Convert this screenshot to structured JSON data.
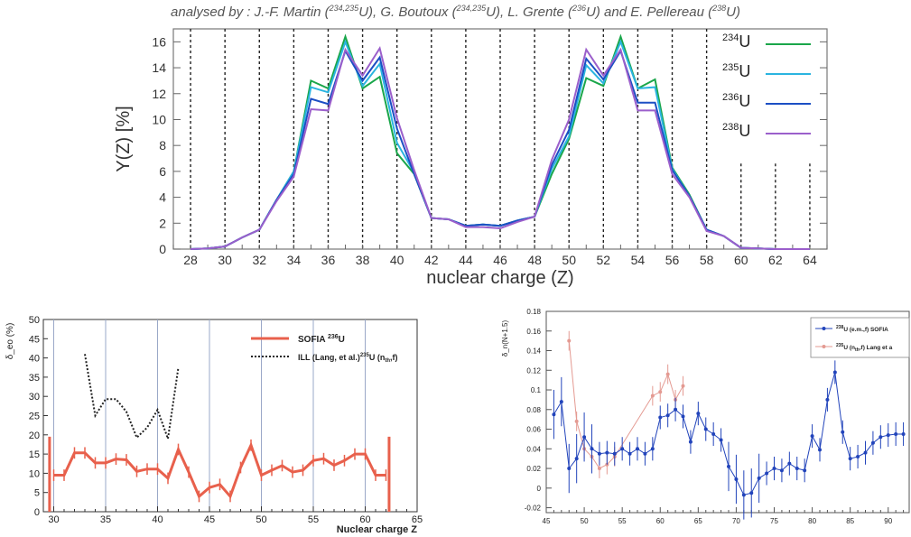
{
  "credit": {
    "prefix": "analysed by : J.-F. Martin (",
    "a": "234,235",
    "b": "U), G. Boutoux (",
    "c": "234,235",
    "d": "U), L. Grente (",
    "e": "236",
    "f": "U) and E. Pellereau (",
    "g": "238",
    "h": "U)"
  },
  "chart_data": [
    {
      "type": "line",
      "xlabel": "nuclear charge (Z)",
      "ylabel": "Y(Z) [%]",
      "xlim": [
        27,
        65
      ],
      "ylim": [
        0,
        17
      ],
      "xticks": [
        "28",
        "30",
        "32",
        "34",
        "36",
        "38",
        "40",
        "42",
        "44",
        "46",
        "48",
        "50",
        "52",
        "54",
        "56",
        "58",
        "60",
        "62",
        "64"
      ],
      "yticks": [
        "0",
        "2",
        "4",
        "6",
        "8",
        "10",
        "12",
        "14",
        "16"
      ],
      "grid": "vertical dotted lines at even Z",
      "legend": "top-right",
      "x": [
        28,
        29,
        30,
        31,
        32,
        33,
        34,
        35,
        36,
        37,
        38,
        39,
        40,
        41,
        42,
        43,
        44,
        45,
        46,
        47,
        48,
        49,
        50,
        51,
        52,
        53,
        54,
        55,
        56,
        57,
        58,
        59,
        60,
        61,
        62,
        63,
        64
      ],
      "series": [
        {
          "name": "234U",
          "label_mass": "234",
          "label_el": "U",
          "color": "#1aa64a",
          "values": [
            0,
            0.05,
            0.2,
            0.9,
            1.5,
            3.8,
            6,
            13,
            12.4,
            16.4,
            12.4,
            13.3,
            7.4,
            5.8,
            2.4,
            2.3,
            1.8,
            1.9,
            1.8,
            2.2,
            2.5,
            5.8,
            8.5,
            13.2,
            12.6,
            16.4,
            12.4,
            13.1,
            6.3,
            4.2,
            1.5,
            1,
            0.1,
            0.05,
            0,
            0,
            0
          ]
        },
        {
          "name": "235U",
          "label_mass": "235",
          "label_el": "U",
          "color": "#2ab4e0",
          "values": [
            0,
            0.05,
            0.2,
            0.9,
            1.5,
            3.8,
            6,
            12.5,
            12.1,
            16,
            12.6,
            14.3,
            8.2,
            5.9,
            2.4,
            2.3,
            1.8,
            1.9,
            1.8,
            2.2,
            2.5,
            6.2,
            8.7,
            14.2,
            12.8,
            16,
            12.4,
            12.5,
            6.2,
            4.1,
            1.5,
            1,
            0.1,
            0.05,
            0,
            0,
            0
          ]
        },
        {
          "name": "236U",
          "label_mass": "236",
          "label_el": "U",
          "color": "#1c4fc4",
          "values": [
            0,
            0.05,
            0.2,
            0.9,
            1.5,
            3.8,
            5.8,
            11.6,
            11.2,
            15.3,
            13,
            14.8,
            9.3,
            5.8,
            2.4,
            2.3,
            1.8,
            1.9,
            1.8,
            2.2,
            2.5,
            6.5,
            9.2,
            14.7,
            13.1,
            15.3,
            11.3,
            11.3,
            6.1,
            4.1,
            1.5,
            1,
            0.1,
            0.05,
            0,
            0,
            0
          ]
        },
        {
          "name": "238U",
          "label_mass": "238",
          "label_el": "U",
          "color": "#9b5fcb",
          "values": [
            0,
            0.05,
            0.2,
            0.9,
            1.5,
            3.7,
            5.6,
            10.8,
            10.7,
            15.4,
            13.4,
            15.5,
            10.1,
            6.1,
            2.4,
            2.3,
            1.7,
            1.7,
            1.6,
            2.1,
            2.5,
            6.9,
            10,
            15.4,
            13.4,
            15.4,
            10.7,
            10.7,
            5.8,
            4,
            1.4,
            1,
            0.1,
            0.05,
            0,
            0,
            0
          ]
        }
      ]
    },
    {
      "type": "line",
      "xlabel": "Nuclear charge Z",
      "ylabel": "δ_eo (%)",
      "xlim": [
        29,
        65
      ],
      "ylim": [
        0,
        50
      ],
      "xticks": [
        "30",
        "35",
        "40",
        "45",
        "50",
        "55",
        "60",
        "65"
      ],
      "yticks": [
        "0",
        "5",
        "10",
        "15",
        "20",
        "25",
        "30",
        "35",
        "40",
        "45",
        "50"
      ],
      "legend": "top-right",
      "series": [
        {
          "name": "SOFIA 236U",
          "label_main": "SOFIA ",
          "label_sup": "236",
          "label_tail": "U",
          "color": "#e8604c",
          "x": [
            30,
            31,
            32,
            33,
            34,
            35,
            36,
            37,
            38,
            39,
            40,
            41,
            42,
            43,
            44,
            45,
            46,
            47,
            48,
            49,
            50,
            51,
            52,
            53,
            54,
            55,
            56,
            57,
            58,
            59,
            60,
            61,
            62
          ],
          "values": [
            9.5,
            9.5,
            15.3,
            15.3,
            12.7,
            12.7,
            13.7,
            13.5,
            10.5,
            11.1,
            11.1,
            8.7,
            16.2,
            10.3,
            4,
            6.3,
            7.1,
            4,
            11.5,
            17.3,
            9.5,
            10.8,
            12,
            10.3,
            10.8,
            13.3,
            13.8,
            12.1,
            13.3,
            15,
            15,
            9.5,
            9.5
          ]
        },
        {
          "name": "ILL (Lang, et al.) 235U (n_th,f)",
          "label_main": "ILL (Lang, et al.)",
          "label_sup": "235",
          "label_tail": "U (n",
          "label_sub": "th",
          "label_end": ",f)",
          "color": "#222222",
          "x": [
            33,
            34,
            35,
            36,
            37,
            38,
            39,
            40,
            41,
            42
          ],
          "values": [
            41,
            25,
            29.3,
            29.3,
            26,
            19.3,
            21.9,
            26.5,
            19,
            37.5
          ]
        }
      ]
    },
    {
      "type": "line",
      "xlabel": "",
      "ylabel": "δ_n(N+1.5)",
      "xlim": [
        45,
        93
      ],
      "ylim": [
        -0.025,
        0.18
      ],
      "xticks": [
        "45",
        "50",
        "55",
        "60",
        "65",
        "70",
        "75",
        "80",
        "85",
        "90"
      ],
      "yticks": [
        "-0.02",
        "0",
        "0.02",
        "0.04",
        "0.06",
        "0.08",
        "0.1",
        "0.12",
        "0.14",
        "0.16",
        "0.18"
      ],
      "legend": "top-right",
      "series": [
        {
          "name": "238U (e.m.,f) SOFIA",
          "label_sup": "238",
          "label_tail": "U (e.m.,f) SOFIA",
          "color": "#2244bb",
          "x": [
            46,
            47,
            48,
            49,
            50,
            51,
            52,
            53,
            54,
            55,
            56,
            57,
            58,
            59,
            60,
            61,
            62,
            63,
            64,
            65,
            66,
            67,
            68,
            69,
            70,
            71,
            72,
            73,
            74,
            75,
            76,
            77,
            78,
            79,
            80,
            81,
            82,
            83,
            84,
            85,
            86,
            87,
            88,
            89,
            90,
            91,
            92
          ],
          "values": [
            0.075,
            0.088,
            0.02,
            0.03,
            0.052,
            0.04,
            0.035,
            0.036,
            0.035,
            0.04,
            0.035,
            0.04,
            0.035,
            0.04,
            0.072,
            0.074,
            0.08,
            0.073,
            0.047,
            0.076,
            0.06,
            0.055,
            0.049,
            0.022,
            0.009,
            -0.007,
            -0.005,
            0.01,
            0.015,
            0.02,
            0.018,
            0.025,
            0.02,
            0.018,
            0.053,
            0.039,
            0.09,
            0.118,
            0.057,
            0.03,
            0.032,
            0.036,
            0.046,
            0.052,
            0.054,
            0.055,
            0.055
          ]
        },
        {
          "name": "235U (n_th,f) Lang et al",
          "label_sup": "235",
          "label_tail": "U (n",
          "label_sub": "th",
          "label_end": ",f) Lang et a",
          "color": "#e49a92",
          "x": [
            48,
            49,
            50,
            51,
            52,
            53,
            54,
            59,
            60,
            61,
            62,
            63
          ],
          "values": [
            0.15,
            0.068,
            0.04,
            0.032,
            0.02,
            0.024,
            0.032,
            0.094,
            0.098,
            0.116,
            0.09,
            0.104
          ]
        }
      ]
    }
  ]
}
